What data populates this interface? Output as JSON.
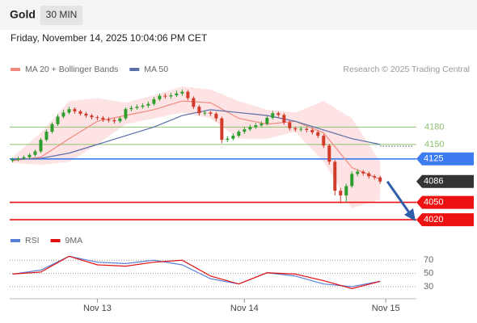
{
  "header": {
    "title": "Gold",
    "timeframe": "30 MIN",
    "datetime": "Friday, November 14, 2025 10:04:06 PM CET",
    "credit": "Research © 2025 Trading Central"
  },
  "chart_data": [
    {
      "type": "candlestick",
      "open": [
        4122,
        4124,
        4126,
        4128,
        4132,
        4138,
        4158,
        4172,
        4185,
        4198,
        4205,
        4211,
        4207,
        4203,
        4200,
        4197,
        4196,
        4193,
        4192,
        4190,
        4195,
        4211,
        4213,
        4215,
        4217,
        4220,
        4228,
        4234,
        4233,
        4235,
        4238,
        4241,
        4230,
        4215,
        4204,
        4205,
        4203,
        4195,
        4158,
        4160,
        4165,
        4172,
        4176,
        4180,
        4183,
        4186,
        4196,
        4204,
        4201,
        4188,
        4178,
        4176,
        4177,
        4175,
        4171,
        4165,
        4148,
        4120,
        4070,
        4062,
        4078,
        4099,
        4103,
        4100,
        4095,
        4093
      ],
      "high": [
        4127,
        4129,
        4131,
        4135,
        4141,
        4161,
        4176,
        4188,
        4202,
        4210,
        4215,
        4214,
        4210,
        4206,
        4203,
        4200,
        4199,
        4197,
        4195,
        4198,
        4214,
        4217,
        4219,
        4221,
        4224,
        4232,
        4238,
        4238,
        4239,
        4243,
        4245,
        4244,
        4233,
        4218,
        4209,
        4208,
        4206,
        4198,
        4164,
        4169,
        4175,
        4180,
        4184,
        4187,
        4190,
        4199,
        4208,
        4207,
        4204,
        4191,
        4181,
        4181,
        4180,
        4178,
        4174,
        4168,
        4151,
        4123,
        4075,
        4082,
        4103,
        4107,
        4106,
        4103,
        4098,
        4096
      ],
      "low": [
        4119,
        4121,
        4123,
        4125,
        4129,
        4135,
        4155,
        4169,
        4182,
        4195,
        4202,
        4203,
        4200,
        4196,
        4193,
        4192,
        4189,
        4188,
        4186,
        4187,
        4192,
        4207,
        4210,
        4212,
        4213,
        4217,
        4225,
        4229,
        4229,
        4232,
        4234,
        4226,
        4211,
        4200,
        4200,
        4199,
        4190,
        4152,
        4154,
        4157,
        4162,
        4168,
        4173,
        4177,
        4180,
        4183,
        4193,
        4197,
        4184,
        4174,
        4172,
        4172,
        4171,
        4167,
        4161,
        4144,
        4115,
        4062,
        4048,
        4050,
        4075,
        4095,
        4096,
        4091,
        4089,
        4082
      ],
      "close": [
        4124,
        4126,
        4128,
        4132,
        4138,
        4158,
        4172,
        4185,
        4198,
        4205,
        4211,
        4207,
        4203,
        4200,
        4197,
        4196,
        4193,
        4192,
        4190,
        4195,
        4211,
        4213,
        4215,
        4217,
        4220,
        4228,
        4234,
        4233,
        4235,
        4238,
        4241,
        4230,
        4215,
        4204,
        4205,
        4203,
        4195,
        4158,
        4160,
        4165,
        4172,
        4176,
        4180,
        4183,
        4186,
        4196,
        4204,
        4201,
        4188,
        4178,
        4176,
        4177,
        4175,
        4171,
        4165,
        4148,
        4120,
        4070,
        4062,
        4078,
        4099,
        4103,
        4100,
        4095,
        4093,
        4086
      ],
      "up_color": "#2e9e2e",
      "down_color": "#d23a2a",
      "xlim": [
        -0.5,
        71.4
      ],
      "ylim": [
        3995,
        4260
      ],
      "series": [
        {
          "name": "MA 20 + Bollinger Bands",
          "color": "#f08a80",
          "band_color": "#fddcdc",
          "x": [
            0,
            5,
            10,
            15,
            20,
            25,
            30,
            35,
            40,
            45,
            50,
            55,
            60,
            65
          ],
          "values": [
            4122,
            4128,
            4160,
            4190,
            4200,
            4210,
            4225,
            4222,
            4195,
            4185,
            4190,
            4170,
            4110,
            4090
          ],
          "upper": [
            4128,
            4170,
            4225,
            4230,
            4222,
            4235,
            4250,
            4245,
            4225,
            4210,
            4205,
            4225,
            4195,
            4120
          ],
          "lower": [
            4118,
            4115,
            4120,
            4150,
            4185,
            4195,
            4205,
            4195,
            4160,
            4160,
            4172,
            4120,
            4040,
            4055
          ]
        },
        {
          "name": "MA 50",
          "color": "#5a6ea8",
          "x": [
            0,
            5,
            10,
            15,
            20,
            25,
            30,
            35,
            40,
            45,
            50,
            55,
            60,
            65
          ],
          "values": [
            4124,
            4126,
            4135,
            4150,
            4165,
            4180,
            4200,
            4210,
            4205,
            4200,
            4190,
            4175,
            4160,
            4150
          ]
        }
      ],
      "levels": [
        {
          "value": 4180,
          "color": "#8dc26f",
          "boxed": false
        },
        {
          "value": 4150,
          "color": "#8dc26f",
          "boxed": false
        },
        {
          "value": 4125,
          "color": "#3d7bf0",
          "boxed": true
        },
        {
          "value": 4086,
          "color": "#333333",
          "boxed": true,
          "line": false
        },
        {
          "value": 4050,
          "color": "#ee1111",
          "boxed": true
        },
        {
          "value": 4020,
          "color": "#ee1111",
          "boxed": true
        }
      ]
    },
    {
      "type": "line",
      "x": [
        0,
        5,
        10,
        15,
        20,
        25,
        30,
        35,
        40,
        45,
        50,
        55,
        60,
        65
      ],
      "series": [
        {
          "name": "RSI",
          "color": "#5b7fd8",
          "values": [
            49,
            55,
            76,
            67,
            65,
            70,
            63,
            42,
            34,
            51,
            46,
            34,
            30,
            38
          ]
        },
        {
          "name": "9MA",
          "color": "#e01010",
          "values": [
            49,
            52,
            76,
            63,
            61,
            67,
            70,
            46,
            34,
            51,
            49,
            39,
            27,
            38
          ]
        }
      ],
      "xlim": [
        -0.5,
        71.4
      ],
      "ylim": [
        14,
        85
      ],
      "yticks": [
        30,
        50,
        70
      ],
      "xticks": [
        {
          "value": 15,
          "label": "Nov 13"
        },
        {
          "value": 41,
          "label": "Nov 14"
        },
        {
          "value": 66,
          "label": "Nov 15"
        }
      ]
    }
  ]
}
